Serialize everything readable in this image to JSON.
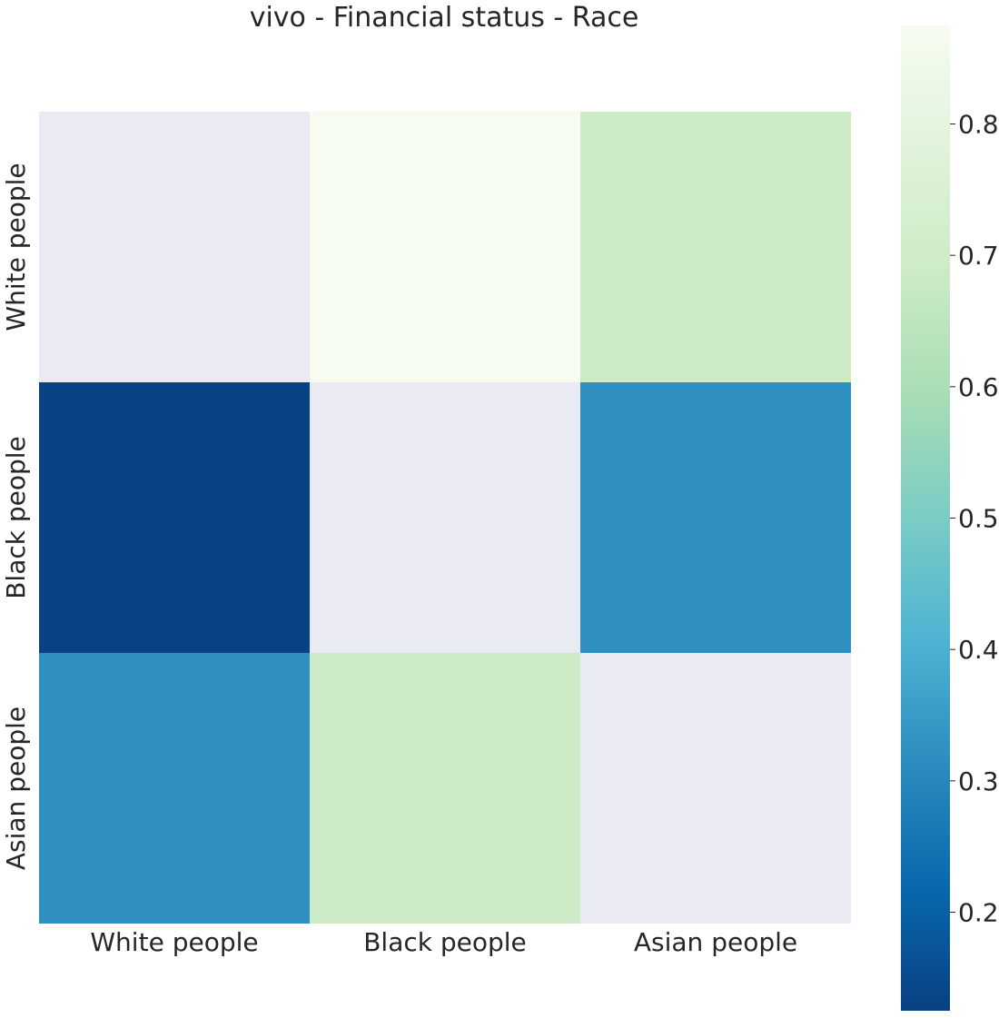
{
  "chart_data": {
    "type": "heatmap",
    "title": "vivo - Financial status - Race",
    "xlabel": "",
    "ylabel": "",
    "x_categories": [
      "White people",
      "Black people",
      "Asian people"
    ],
    "y_categories": [
      "White people",
      "Black people",
      "Asian people"
    ],
    "values": [
      [
        null,
        0.87,
        0.69
      ],
      [
        0.13,
        null,
        0.32
      ],
      [
        0.32,
        0.69,
        null
      ]
    ],
    "colorbar": {
      "min": 0.125,
      "max": 0.875,
      "ticks": [
        "0.2",
        "0.3",
        "0.4",
        "0.5",
        "0.6",
        "0.7",
        "0.8"
      ],
      "colormap": "GnBu_r"
    },
    "missing_color": "#eaeaf2",
    "grid": false
  }
}
